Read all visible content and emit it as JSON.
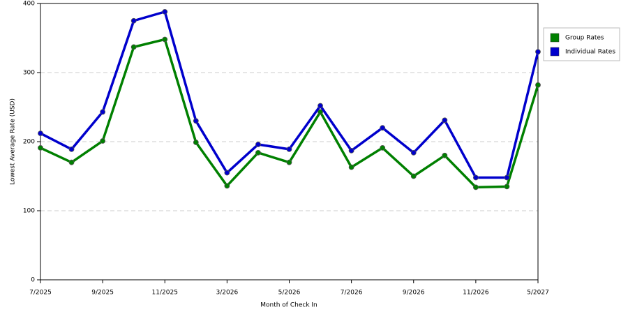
{
  "chart_data": {
    "type": "line",
    "x_label": "Month of Check In",
    "y_label": "Lowest Average Rate (USD)",
    "categories": [
      "7/2025",
      null,
      "9/2025",
      null,
      "11/2025",
      null,
      "3/2026",
      null,
      "5/2026",
      null,
      "7/2026",
      null,
      "9/2026",
      null,
      "11/2026",
      null,
      "5/2027"
    ],
    "series": [
      {
        "name": "Group Rates",
        "color": "#008000",
        "values": [
          191,
          170,
          201,
          337,
          348,
          199,
          136,
          184,
          170,
          243,
          163,
          191,
          150,
          180,
          134,
          135,
          282
        ]
      },
      {
        "name": "Individual Rates",
        "color": "#0000cc",
        "values": [
          212,
          189,
          243,
          375,
          388,
          230,
          155,
          196,
          189,
          252,
          187,
          220,
          184,
          231,
          148,
          148,
          330
        ]
      }
    ],
    "ylim": [
      0,
      400
    ],
    "yticks": [
      0,
      100,
      200,
      300,
      400
    ],
    "grid": true,
    "legend": "right"
  }
}
